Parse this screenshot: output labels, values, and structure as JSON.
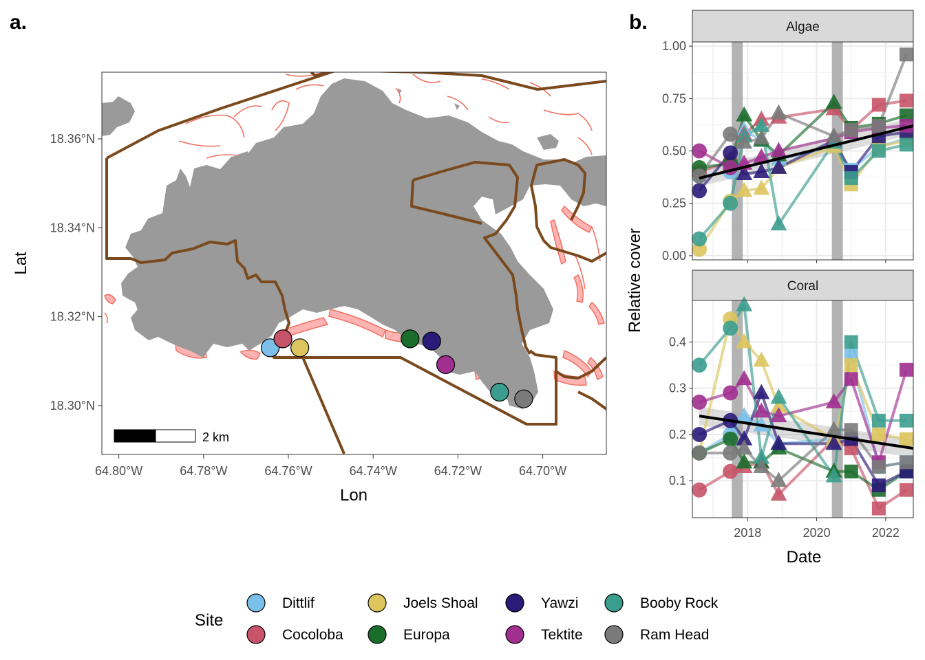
{
  "panel_a": {
    "label": "a.",
    "xlabel": "Lon",
    "ylabel": "Lat",
    "xticks": [
      {
        "value": -64.8,
        "label": "64.80°W"
      },
      {
        "value": -64.78,
        "label": "64.78°W"
      },
      {
        "value": -64.76,
        "label": "64.76°W"
      },
      {
        "value": -64.74,
        "label": "64.74°W"
      },
      {
        "value": -64.72,
        "label": "64.72°W"
      },
      {
        "value": -64.7,
        "label": "64.70°W"
      }
    ],
    "yticks": [
      {
        "value": 18.3,
        "label": "18.30°N"
      },
      {
        "value": 18.32,
        "label": "18.32°N"
      },
      {
        "value": 18.34,
        "label": "18.34°N"
      },
      {
        "value": 18.36,
        "label": "18.36°N"
      }
    ],
    "xlim": [
      -64.804,
      -64.685
    ],
    "ylim": [
      18.289,
      18.375
    ],
    "scalebar_label": "2 km",
    "colors": {
      "land": "#9a9a9a",
      "reef_fill": "#ffb3b3",
      "reef_line": "#f07060",
      "boundary": "#7a4a1e"
    }
  },
  "panel_b": {
    "label": "b.",
    "xlabel": "Date",
    "ylabel": "Relative cover",
    "facets": [
      {
        "strip": "Algae",
        "yticks": [
          "0.00",
          "0.25",
          "0.50",
          "0.75",
          "1.00"
        ]
      },
      {
        "strip": "Coral",
        "yticks": [
          "0.1",
          "0.2",
          "0.3",
          "0.4"
        ]
      }
    ],
    "xticks": [
      "2018",
      "2020",
      "2022"
    ],
    "colors": {
      "strip_bg": "#d9d9d9",
      "disturbance_band": "#b3b3b3",
      "trend": "#000000"
    }
  },
  "legend": {
    "title": "Site",
    "items": [
      {
        "label": "Dittlif",
        "color": "#7cc0ea"
      },
      {
        "label": "Cocoloba",
        "color": "#c75468"
      },
      {
        "label": "Joels Shoal",
        "color": "#dcc55e"
      },
      {
        "label": "Europa",
        "color": "#1b6d2c"
      },
      {
        "label": "Yawzi",
        "color": "#2a1b78"
      },
      {
        "label": "Tektite",
        "color": "#a02f8f"
      },
      {
        "label": "Booby Rock",
        "color": "#3b9d8e"
      },
      {
        "label": "Ram Head",
        "color": "#7a7a7a"
      }
    ]
  },
  "chart_data": [
    {
      "type": "scatter",
      "description_kind": "map",
      "sites": [
        {
          "name": "Dittlif",
          "lon": -64.7643,
          "lat": 18.313,
          "color": "#7cc0ea"
        },
        {
          "name": "Cocoloba",
          "lon": -64.7613,
          "lat": 18.315,
          "color": "#c75468"
        },
        {
          "name": "Joels Shoal",
          "lon": -64.7573,
          "lat": 18.313,
          "color": "#dcc55e"
        },
        {
          "name": "Europa",
          "lon": -64.7313,
          "lat": 18.315,
          "color": "#1b6d2c"
        },
        {
          "name": "Yawzi",
          "lon": -64.7262,
          "lat": 18.3145,
          "color": "#2a1b78"
        },
        {
          "name": "Tektite",
          "lon": -64.7229,
          "lat": 18.3092,
          "color": "#a02f8f"
        },
        {
          "name": "Booby Rock",
          "lon": -64.7102,
          "lat": 18.303,
          "color": "#3b9d8e"
        },
        {
          "name": "Ram Head",
          "lon": -64.7045,
          "lat": 18.3015,
          "color": "#7a7a7a"
        }
      ],
      "xlabel": "Lon",
      "ylabel": "Lat",
      "xlim": [
        -64.804,
        -64.685
      ],
      "ylim": [
        18.289,
        18.375
      ]
    },
    {
      "type": "line",
      "facet": "Algae",
      "xlabel": "Date",
      "ylabel": "Relative cover",
      "xlim": [
        2016.4,
        2022.8
      ],
      "ylim": [
        -0.02,
        1.02
      ],
      "disturbance_periods": [
        2017.7,
        2020.6
      ],
      "trend": {
        "x": [
          2016.6,
          2022.8
        ],
        "y": [
          0.37,
          0.62
        ]
      },
      "series": [
        {
          "name": "Dittlif",
          "color": "#7cc0ea",
          "x": [
            2016.6,
            2017.5,
            2017.9,
            2018.4,
            2018.9,
            2020.5,
            2021.0,
            2021.8,
            2022.6
          ],
          "y": [
            0.38,
            0.4,
            0.6,
            0.55,
            0.46,
            0.52,
            0.41,
            0.52,
            0.56
          ]
        },
        {
          "name": "Cocoloba",
          "color": "#c75468",
          "x": [
            2016.6,
            2017.5,
            2017.9,
            2018.4,
            2018.9,
            2020.5,
            2021.0,
            2021.8,
            2022.6
          ],
          "y": [
            0.4,
            0.45,
            0.58,
            0.65,
            0.66,
            0.7,
            0.6,
            0.72,
            0.74
          ]
        },
        {
          "name": "Joels Shoal",
          "color": "#dcc55e",
          "x": [
            2016.6,
            2017.5,
            2017.9,
            2018.4,
            2018.9,
            2020.5,
            2021.0,
            2021.8,
            2022.6
          ],
          "y": [
            0.03,
            0.26,
            0.31,
            0.32,
            0.42,
            0.52,
            0.34,
            0.52,
            0.55
          ]
        },
        {
          "name": "Europa",
          "color": "#1b6d2c",
          "x": [
            2016.6,
            2017.5,
            2017.9,
            2018.4,
            2018.9,
            2020.5,
            2021.0,
            2021.8,
            2022.6
          ],
          "y": [
            0.42,
            0.44,
            0.67,
            0.55,
            0.48,
            0.73,
            0.61,
            0.63,
            0.67
          ]
        },
        {
          "name": "Yawzi",
          "color": "#2a1b78",
          "x": [
            2016.6,
            2017.5,
            2017.9,
            2018.4,
            2018.9,
            2020.5,
            2021.0,
            2021.8,
            2022.6
          ],
          "y": [
            0.31,
            0.49,
            0.39,
            0.4,
            0.42,
            0.55,
            0.4,
            0.57,
            0.59
          ]
        },
        {
          "name": "Tektite",
          "color": "#a02f8f",
          "x": [
            2016.6,
            2017.5,
            2017.9,
            2018.4,
            2018.9,
            2020.5,
            2021.0,
            2021.8,
            2022.6
          ],
          "y": [
            0.5,
            0.42,
            0.44,
            0.47,
            0.5,
            0.56,
            0.59,
            0.61,
            0.62
          ]
        },
        {
          "name": "Booby Rock",
          "color": "#3b9d8e",
          "x": [
            2016.6,
            2017.5,
            2017.9,
            2018.4,
            2018.9,
            2020.5,
            2021.0,
            2021.8,
            2022.6
          ],
          "y": [
            0.08,
            0.25,
            0.57,
            0.62,
            0.15,
            0.54,
            0.37,
            0.5,
            0.53
          ]
        },
        {
          "name": "Ram Head",
          "color": "#7a7a7a",
          "x": [
            2016.6,
            2017.5,
            2017.9,
            2018.4,
            2018.9,
            2020.5,
            2021.0,
            2021.8,
            2022.6
          ],
          "y": [
            0.38,
            0.58,
            0.54,
            0.56,
            0.68,
            0.57,
            0.6,
            0.62,
            0.96
          ]
        }
      ]
    },
    {
      "type": "line",
      "facet": "Coral",
      "xlabel": "Date",
      "ylabel": "Relative cover",
      "xlim": [
        2016.4,
        2022.8
      ],
      "ylim": [
        0.02,
        0.49
      ],
      "disturbance_periods": [
        2017.7,
        2020.6
      ],
      "trend": {
        "x": [
          2016.6,
          2022.8
        ],
        "y": [
          0.24,
          0.17
        ]
      },
      "series": [
        {
          "name": "Dittlif",
          "color": "#7cc0ea",
          "x": [
            2016.6,
            2017.5,
            2017.9,
            2018.4,
            2018.9,
            2020.5,
            2021.0,
            2021.8,
            2022.6
          ],
          "y": [
            0.16,
            0.2,
            0.24,
            0.22,
            0.18,
            0.19,
            0.37,
            0.13,
            0.14
          ]
        },
        {
          "name": "Cocoloba",
          "color": "#c75468",
          "x": [
            2016.6,
            2017.5,
            2017.9,
            2018.4,
            2018.9,
            2020.5,
            2021.0,
            2021.8,
            2022.6
          ],
          "y": [
            0.08,
            0.12,
            0.13,
            0.14,
            0.07,
            0.19,
            0.17,
            0.04,
            0.08
          ]
        },
        {
          "name": "Joels Shoal",
          "color": "#dcc55e",
          "x": [
            2016.6,
            2017.5,
            2017.9,
            2018.4,
            2018.9,
            2020.5,
            2021.0,
            2021.8,
            2022.6
          ],
          "y": [
            0.16,
            0.45,
            0.4,
            0.36,
            0.26,
            0.19,
            0.35,
            0.2,
            0.19
          ]
        },
        {
          "name": "Europa",
          "color": "#1b6d2c",
          "x": [
            2016.6,
            2017.5,
            2017.9,
            2018.4,
            2018.9,
            2020.5,
            2021.0,
            2021.8,
            2022.6
          ],
          "y": [
            0.16,
            0.19,
            0.14,
            0.14,
            0.17,
            0.12,
            0.12,
            0.08,
            0.12
          ]
        },
        {
          "name": "Yawzi",
          "color": "#2a1b78",
          "x": [
            2016.6,
            2017.5,
            2017.9,
            2018.4,
            2018.9,
            2020.5,
            2021.0,
            2021.8,
            2022.6
          ],
          "y": [
            0.2,
            0.23,
            0.19,
            0.29,
            0.18,
            0.18,
            0.19,
            0.09,
            0.12
          ]
        },
        {
          "name": "Tektite",
          "color": "#a02f8f",
          "x": [
            2016.6,
            2017.5,
            2017.9,
            2018.4,
            2018.9,
            2020.5,
            2021.0,
            2021.8,
            2022.6
          ],
          "y": [
            0.27,
            0.29,
            0.32,
            0.25,
            0.24,
            0.27,
            0.32,
            0.14,
            0.34
          ]
        },
        {
          "name": "Booby Rock",
          "color": "#3b9d8e",
          "x": [
            2016.6,
            2017.5,
            2017.9,
            2018.4,
            2018.9,
            2020.5,
            2021.0,
            2021.8,
            2022.6
          ],
          "y": [
            0.35,
            0.43,
            0.48,
            0.15,
            0.28,
            0.11,
            0.4,
            0.23,
            0.23
          ]
        },
        {
          "name": "Ram Head",
          "color": "#7a7a7a",
          "x": [
            2016.6,
            2017.5,
            2017.9,
            2018.4,
            2018.9,
            2020.5,
            2021.0,
            2021.8,
            2022.6
          ],
          "y": [
            0.16,
            0.16,
            0.17,
            0.13,
            0.1,
            0.21,
            0.21,
            0.13,
            0.14
          ]
        }
      ]
    }
  ]
}
